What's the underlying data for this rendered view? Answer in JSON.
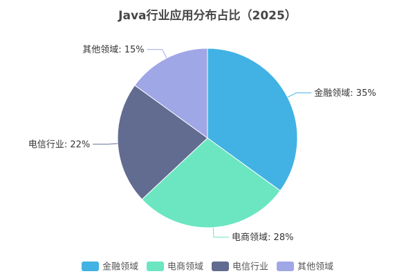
{
  "chart_data": {
    "type": "pie",
    "title": "Java行业应用分布占比（2025）",
    "unit": "%",
    "categories": [
      "金融领域",
      "电商领域",
      "电信行业",
      "其他领域"
    ],
    "values": [
      35,
      28,
      22,
      15
    ],
    "colors": [
      "#41B2E3",
      "#6BE6C1",
      "#626C91",
      "#A0A7E6"
    ],
    "label_format": "{name}: {value}%",
    "start_angle": "12 o'clock",
    "direction": "clockwise",
    "legend": {
      "position": "bottom",
      "items": [
        "金融领域",
        "电商领域",
        "电信行业",
        "其他领域"
      ]
    }
  }
}
